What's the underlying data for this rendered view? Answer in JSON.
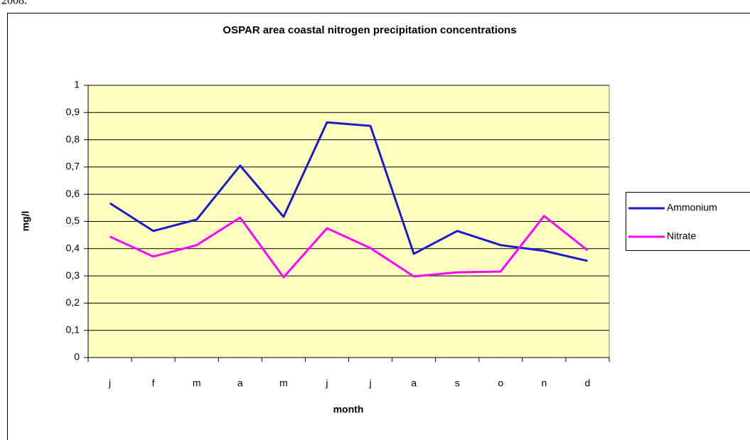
{
  "caption": "2008.",
  "chart_data": {
    "type": "line",
    "title": "OSPAR area coastal nitrogen precipitation concentrations",
    "x_label": "month",
    "y_label": "mg/l",
    "categories": [
      "j",
      "f",
      "m",
      "a",
      "m",
      "j",
      "j",
      "a",
      "s",
      "o",
      "n",
      "d"
    ],
    "series": [
      {
        "name": "Ammonium",
        "color": "#1a1acc",
        "values": [
          0.567,
          0.465,
          0.507,
          0.705,
          0.517,
          0.864,
          0.851,
          0.381,
          0.465,
          0.413,
          0.392,
          0.355
        ]
      },
      {
        "name": "Nitrate",
        "color": "#ff00ff",
        "values": [
          0.444,
          0.371,
          0.413,
          0.514,
          0.295,
          0.475,
          0.402,
          0.298,
          0.313,
          0.316,
          0.52,
          0.394
        ]
      }
    ],
    "ylim": [
      0,
      1
    ],
    "yticks": [
      0,
      {
        "value": 0.1,
        "label": "0,1"
      },
      {
        "value": 0.2,
        "label": "0,2"
      },
      {
        "value": 0.3,
        "label": "0,3"
      },
      {
        "value": 0.4,
        "label": "0,4"
      },
      {
        "value": 0.5,
        "label": "0,5"
      },
      {
        "value": 0.6,
        "label": "0,6"
      },
      {
        "value": 0.7,
        "label": "0,7"
      },
      {
        "value": 0.8,
        "label": "0,8"
      },
      {
        "value": 0.9,
        "label": "0,9"
      },
      1
    ],
    "grid": true,
    "legend": "right",
    "plot_background": "#ffffc0"
  }
}
